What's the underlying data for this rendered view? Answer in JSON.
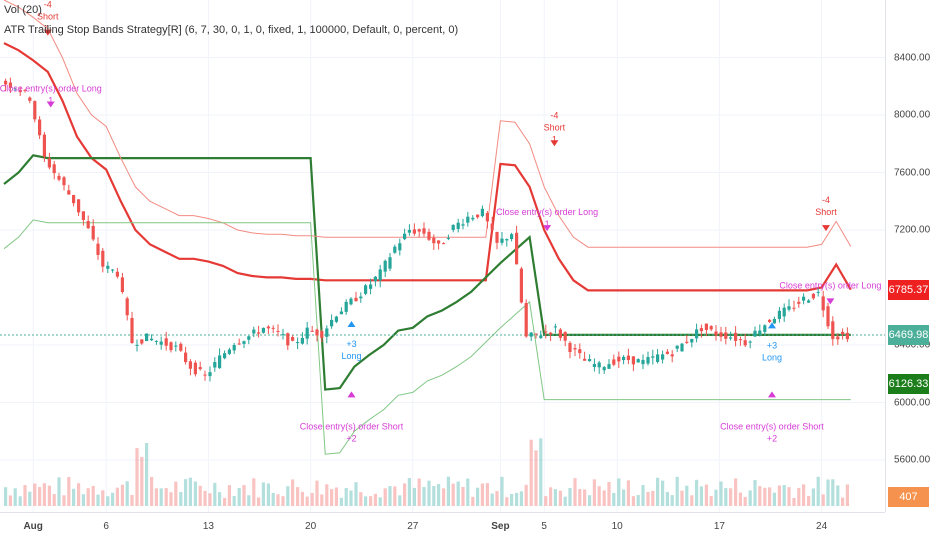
{
  "legend": {
    "vol": "Vol (20)",
    "strategy_name": "ATR Trailing Stop Bands Strategy[R]",
    "strategy_params": "(6, 7, 30, 0, 1, 0, fixed, 1, 100000, Default, 0, percent, 0)"
  },
  "price_axis": {
    "ticks": [
      "8400.00",
      "8000.00",
      "7600.00",
      "7200.00",
      "6400.00",
      "6000.00",
      "5600.00"
    ],
    "badges": [
      {
        "label": "6785.37",
        "color": "#ef2020"
      },
      {
        "label": "6469.98",
        "color": "#4caf9a"
      },
      {
        "label": "6126.33",
        "color": "#1b7e1b"
      },
      {
        "label": "407",
        "color": "#f5924e"
      }
    ]
  },
  "time_axis": {
    "ticks": [
      {
        "label": "Aug",
        "bold": true
      },
      {
        "label": "6",
        "bold": false
      },
      {
        "label": "13",
        "bold": false
      },
      {
        "label": "20",
        "bold": false
      },
      {
        "label": "27",
        "bold": false
      },
      {
        "label": "Sep",
        "bold": true
      },
      {
        "label": "5",
        "bold": false
      },
      {
        "label": "10",
        "bold": false
      },
      {
        "label": "17",
        "bold": false
      },
      {
        "label": "24",
        "bold": false
      }
    ]
  },
  "chart_data": {
    "type": "line",
    "title": "ATR Trailing Stop Bands Strategy[R]",
    "ylim": [
      5300,
      8750
    ],
    "x": [
      "Jul 30",
      "Jul 31",
      "Aug 1",
      "Aug 2",
      "Aug 3",
      "Aug 4",
      "Aug 5",
      "Aug 6",
      "Aug 7",
      "Aug 8",
      "Aug 9",
      "Aug 10",
      "Aug 11",
      "Aug 12",
      "Aug 13",
      "Aug 14",
      "Aug 15",
      "Aug 16",
      "Aug 17",
      "Aug 18",
      "Aug 19",
      "Aug 20",
      "Aug 21",
      "Aug 22",
      "Aug 23",
      "Aug 24",
      "Aug 25",
      "Aug 26",
      "Aug 27",
      "Aug 28",
      "Aug 29",
      "Aug 30",
      "Aug 31",
      "Sep 1",
      "Sep 2",
      "Sep 3",
      "Sep 4",
      "Sep 5",
      "Sep 6",
      "Sep 7",
      "Sep 8",
      "Sep 9",
      "Sep 10",
      "Sep 11",
      "Sep 12",
      "Sep 13",
      "Sep 14",
      "Sep 15",
      "Sep 16",
      "Sep 17",
      "Sep 18",
      "Sep 19",
      "Sep 20",
      "Sep 21",
      "Sep 22",
      "Sep 23",
      "Sep 24",
      "Sep 25",
      "Sep 26"
    ],
    "series": [
      {
        "name": "price",
        "color": "#26a69a",
        "values": [
          8230,
          8200,
          8120,
          7700,
          7550,
          7400,
          7200,
          6950,
          6900,
          6420,
          6450,
          6420,
          6380,
          6250,
          6180,
          6310,
          6420,
          6460,
          6520,
          6480,
          6400,
          6500,
          6480,
          6620,
          6700,
          6790,
          6900,
          7080,
          7200,
          7180,
          7080,
          7220,
          7290,
          7320,
          7100,
          7180,
          6450,
          6480,
          6510,
          6380,
          6290,
          6250,
          6290,
          6300,
          6280,
          6320,
          6350,
          6430,
          6520,
          6480,
          6460,
          6420,
          6520,
          6600,
          6650,
          6720,
          6760,
          6460,
          6470
        ]
      },
      {
        "name": "upper band",
        "color": "#e53935",
        "values": [
          8500,
          8450,
          8380,
          8300,
          8100,
          7850,
          7700,
          7620,
          7400,
          7200,
          7100,
          7050,
          7000,
          7000,
          6980,
          6950,
          6900,
          6880,
          6870,
          6870,
          6860,
          6860,
          6850,
          6850,
          6850,
          6850,
          6850,
          6850,
          6850,
          6850,
          6850,
          6850,
          6850,
          6850,
          7660,
          7650,
          7500,
          7200,
          7000,
          6850,
          6780,
          6780,
          6780,
          6780,
          6780,
          6780,
          6780,
          6780,
          6780,
          6780,
          6780,
          6780,
          6780,
          6780,
          6780,
          6780,
          6800,
          6960,
          6785
        ]
      },
      {
        "name": "lower band",
        "color": "#2e7d32",
        "values": [
          7520,
          7600,
          7720,
          7700,
          7700,
          7700,
          7700,
          7700,
          7700,
          7700,
          7700,
          7700,
          7700,
          7700,
          7700,
          7700,
          7700,
          7700,
          7700,
          7700,
          7700,
          7700,
          6090,
          6100,
          6250,
          6330,
          6400,
          6500,
          6520,
          6600,
          6640,
          6700,
          6770,
          6870,
          6970,
          7060,
          7150,
          6470,
          6470,
          6470,
          6470,
          6470,
          6470,
          6470,
          6470,
          6470,
          6470,
          6470,
          6470,
          6470,
          6470,
          6470,
          6470,
          6470,
          6470,
          6470,
          6470,
          6470,
          6470
        ]
      }
    ],
    "signals": [
      {
        "label": "Short",
        "qty": "-4",
        "sub": "1",
        "side": "short"
      },
      {
        "label": "Close entry(s) order Long",
        "sub": "1",
        "side": "close"
      },
      {
        "label": "Long",
        "qty": "+3",
        "side": "long"
      },
      {
        "label": "Close entry(s) order Short",
        "sub": "+2",
        "side": "close"
      },
      {
        "label": "Short",
        "qty": "-4",
        "sub": "1",
        "side": "short"
      },
      {
        "label": "Close entry(s) order Long",
        "sub": "1",
        "side": "close"
      },
      {
        "label": "Long",
        "qty": "+3",
        "side": "long"
      },
      {
        "label": "Close entry(s) order Short",
        "sub": "+2",
        "side": "close"
      },
      {
        "label": "Short",
        "qty": "-4",
        "side": "short"
      },
      {
        "label": "Close entry(s) order Long",
        "side": "close"
      }
    ],
    "current_price": 6469.98,
    "volume": {
      "last": 407
    }
  }
}
